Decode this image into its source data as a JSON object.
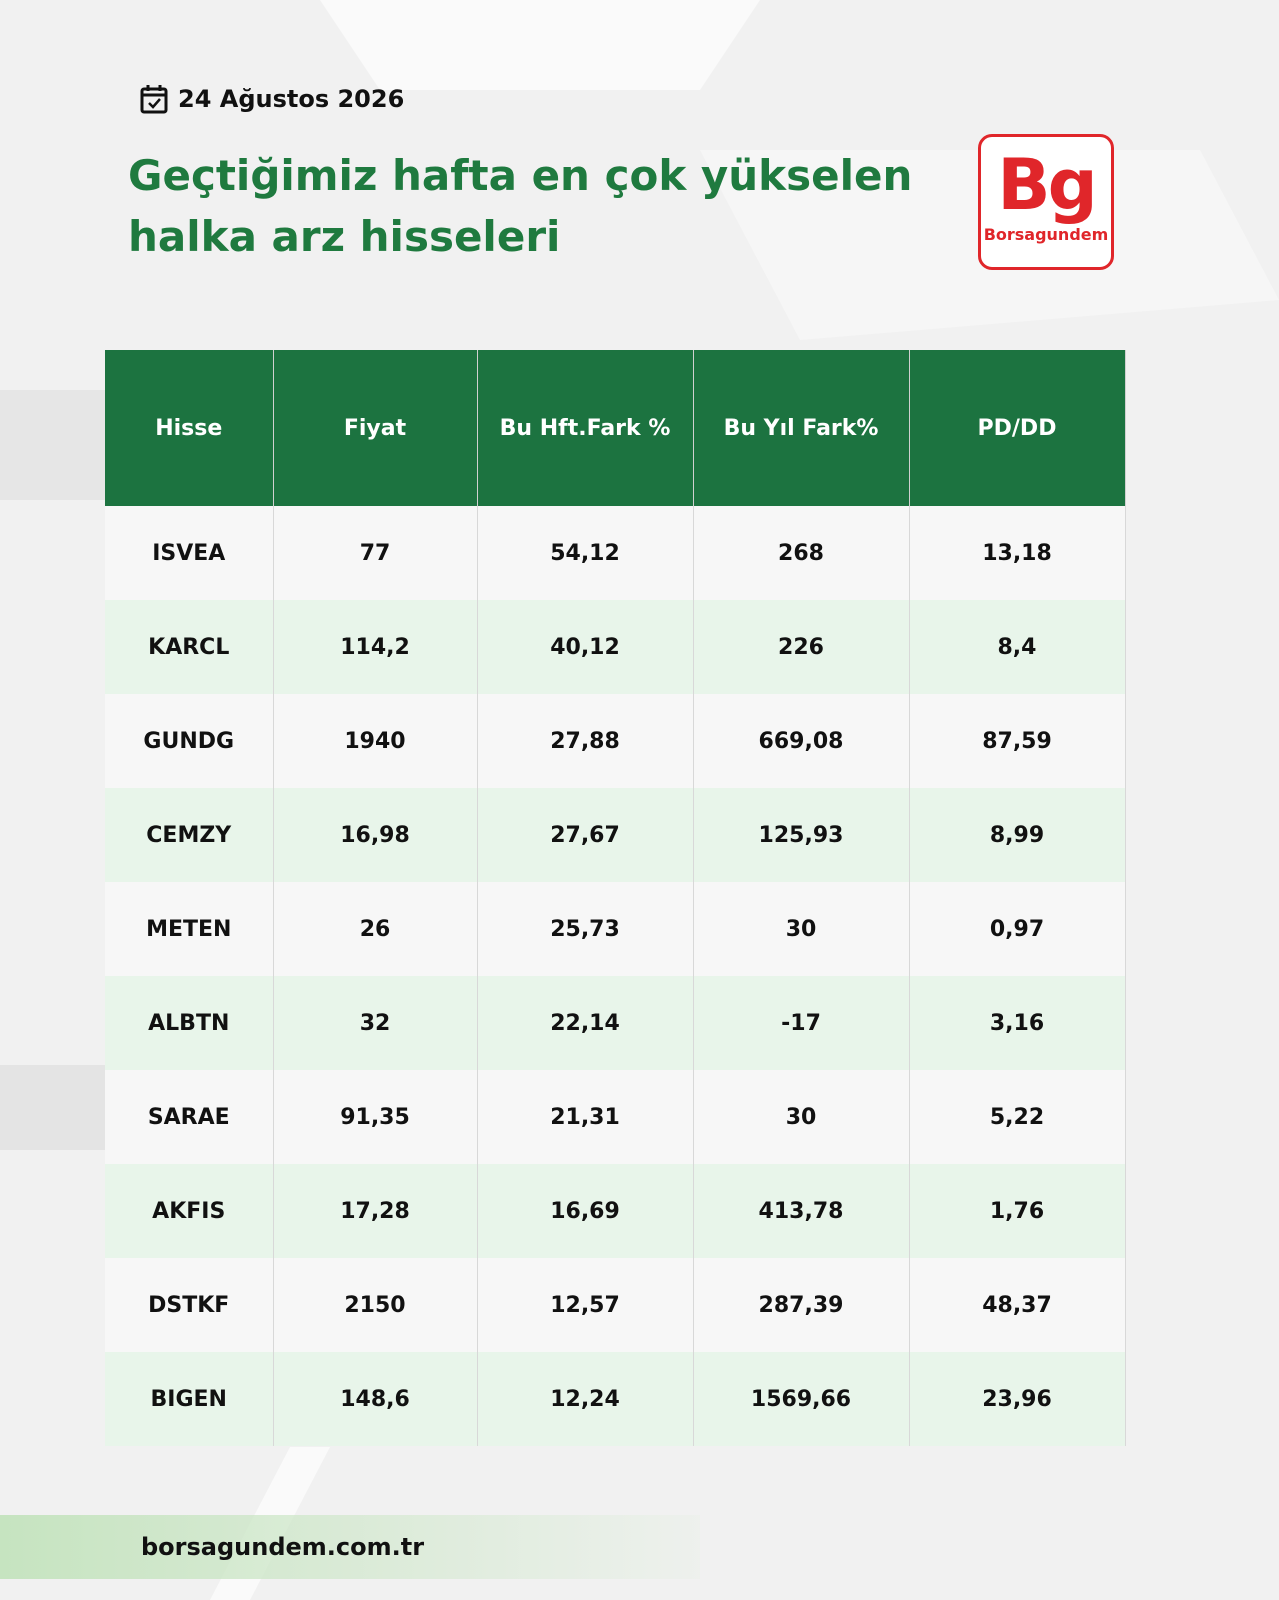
{
  "header": {
    "date": "24 Ağustos 2026",
    "title_lines": [
      "Geçtiğimiz hafta en çok yükselen",
      "halka arz hisseleri"
    ]
  },
  "logo": {
    "mark": "Bg",
    "name": "Borsagundem"
  },
  "table": {
    "columns": [
      "Hisse",
      "Fiyat",
      "Bu Hft.Fark %",
      "Bu Yıl Fark%",
      "PD/DD"
    ],
    "rows": [
      [
        "ISVEA",
        "77",
        "54,12",
        "268",
        "13,18"
      ],
      [
        "KARCL",
        "114,2",
        "40,12",
        "226",
        "8,4"
      ],
      [
        "GUNDG",
        "1940",
        "27,88",
        "669,08",
        "87,59"
      ],
      [
        "CEMZY",
        "16,98",
        "27,67",
        "125,93",
        "8,99"
      ],
      [
        "METEN",
        "26",
        "25,73",
        "30",
        "0,97"
      ],
      [
        "ALBTN",
        "32",
        "22,14",
        "-17",
        "3,16"
      ],
      [
        "SARAE",
        "91,35",
        "21,31",
        "30",
        "5,22"
      ],
      [
        "AKFIS",
        "17,28",
        "16,69",
        "413,78",
        "1,76"
      ],
      [
        "DSTKF",
        "2150",
        "12,57",
        "287,39",
        "48,37"
      ],
      [
        "BIGEN",
        "148,6",
        "12,24",
        "1569,66",
        "23,96"
      ]
    ]
  },
  "footer": {
    "url": "borsagundem.com.tr"
  }
}
